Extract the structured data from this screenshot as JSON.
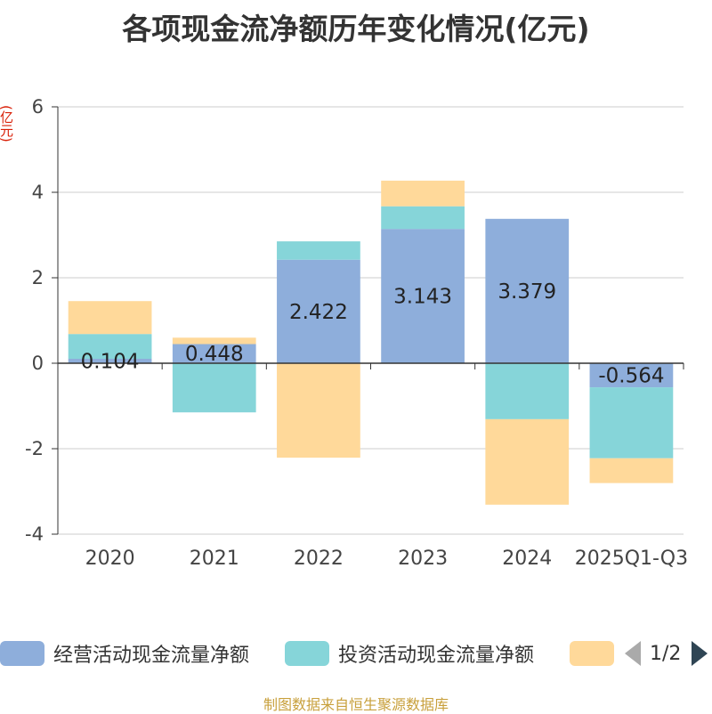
{
  "chart_data": {
    "type": "bar",
    "stacked": true,
    "title": "各项现金流净额历年变化情况(亿元)",
    "ylabel": "(亿元)",
    "xlabel": "",
    "ylim": [
      -4,
      6
    ],
    "yticks": [
      -4,
      -2,
      0,
      2,
      4,
      6
    ],
    "grid": true,
    "categories": [
      "2020",
      "2021",
      "2022",
      "2023",
      "2024",
      "2025Q1-Q3"
    ],
    "series": [
      {
        "name": "经营活动现金流量净额",
        "color": "#8eaedb",
        "values": [
          0.104,
          0.448,
          2.422,
          3.143,
          3.379,
          -0.564
        ],
        "labels": [
          "0.104",
          "0.448",
          "2.422",
          "3.143",
          "3.379",
          "-0.564"
        ]
      },
      {
        "name": "投资活动现金流量净额",
        "color": "#86d5d9",
        "values": [
          0.58,
          -1.15,
          0.43,
          0.53,
          -1.31,
          -1.66
        ]
      },
      {
        "name": "",
        "color": "#ffd99a",
        "values": [
          0.77,
          0.15,
          -2.21,
          0.6,
          -2.0,
          -0.58
        ]
      }
    ],
    "legend_position": "bottom"
  },
  "legend": {
    "page_text": "1/2"
  },
  "source": "制图数据来自恒生聚源数据库"
}
